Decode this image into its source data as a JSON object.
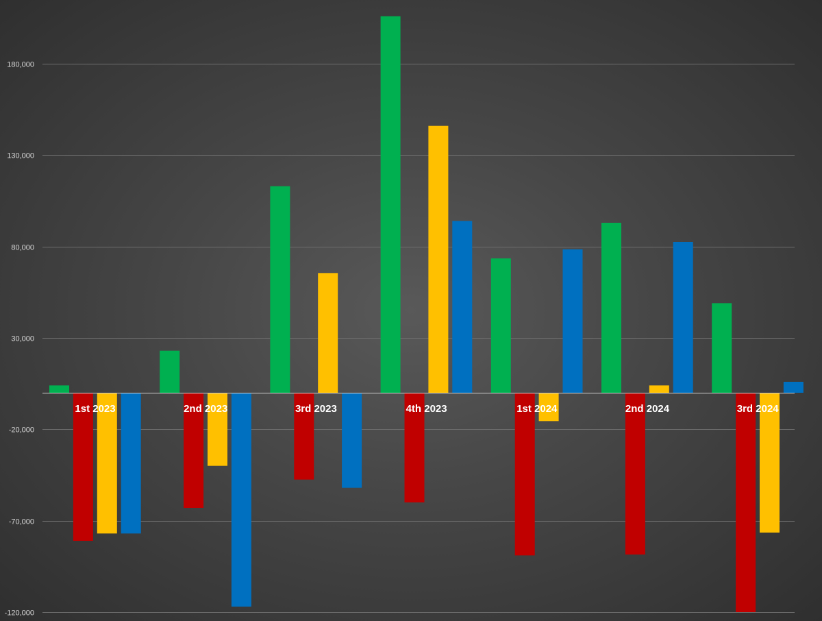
{
  "chart_data": {
    "type": "bar",
    "title": "",
    "xlabel": "",
    "ylabel": "",
    "ylim": [
      -120000,
      200000
    ],
    "yticks": [
      180000,
      130000,
      80000,
      30000,
      -20000,
      -70000,
      -120000
    ],
    "ytick_labels": [
      "180,000",
      "130,000",
      "80,000",
      "30,000",
      "-20,000",
      "-70,000",
      "-120,000"
    ],
    "grid": true,
    "legend": "none",
    "categories": [
      "1st 2023",
      "2nd 2023",
      "3rd 2023",
      "4th 2023",
      "1st 2024",
      "2nd 2024",
      "3rd 2024"
    ],
    "series": [
      {
        "color": "#00b050",
        "values": [
          4000,
          23000,
          113000,
          206000,
          73500,
          93000,
          49000
        ]
      },
      {
        "color": "#c00000",
        "values": [
          -81000,
          -63000,
          -47500,
          -60000,
          -89000,
          -88500,
          -120000
        ]
      },
      {
        "color": "#ffc000",
        "values": [
          -77000,
          -40000,
          65500,
          146000,
          -15500,
          4000,
          -76500
        ]
      },
      {
        "color": "#0070c0",
        "values": [
          -77000,
          -117000,
          -52000,
          94000,
          78500,
          82500,
          6000
        ]
      }
    ]
  }
}
